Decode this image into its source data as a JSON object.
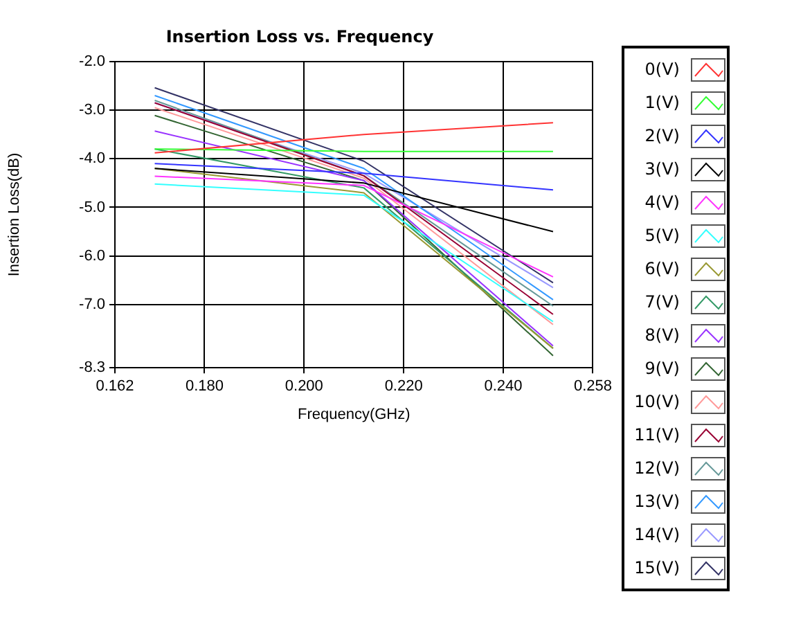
{
  "chart_data": {
    "type": "line",
    "title": "Insertion Loss vs. Frequency",
    "xlabel": "Frequency(GHz)",
    "ylabel": "Insertion Loss(dB)",
    "x": [
      0.17,
      0.212,
      0.25
    ],
    "series": [
      {
        "name": "0(V)",
        "color": "#ff3333",
        "values": [
          -3.88,
          -3.5,
          -3.26
        ]
      },
      {
        "name": "1(V)",
        "color": "#33ff33",
        "values": [
          -3.8,
          -3.85,
          -3.85
        ]
      },
      {
        "name": "2(V)",
        "color": "#3333ff",
        "values": [
          -4.1,
          -4.3,
          -4.64
        ]
      },
      {
        "name": "3(V)",
        "color": "#000000",
        "values": [
          -4.2,
          -4.5,
          -5.5
        ]
      },
      {
        "name": "4(V)",
        "color": "#ff33ff",
        "values": [
          -4.36,
          -4.55,
          -6.43
        ]
      },
      {
        "name": "5(V)",
        "color": "#33ffff",
        "values": [
          -4.52,
          -4.75,
          -7.35
        ]
      },
      {
        "name": "6(V)",
        "color": "#999933",
        "values": [
          -4.2,
          -4.7,
          -7.9
        ]
      },
      {
        "name": "7(V)",
        "color": "#339966",
        "values": [
          -3.8,
          -4.6,
          -7.9
        ]
      },
      {
        "name": "8(V)",
        "color": "#9933ff",
        "values": [
          -3.43,
          -4.45,
          -7.85
        ]
      },
      {
        "name": "9(V)",
        "color": "#336633",
        "values": [
          -3.11,
          -4.45,
          -8.05
        ]
      },
      {
        "name": "10(V)",
        "color": "#ff9999",
        "values": [
          -2.95,
          -4.4,
          -7.41
        ]
      },
      {
        "name": "11(V)",
        "color": "#990033",
        "values": [
          -2.85,
          -4.35,
          -7.2
        ]
      },
      {
        "name": "12(V)",
        "color": "#669999",
        "values": [
          -2.8,
          -4.35,
          -7.03
        ]
      },
      {
        "name": "13(V)",
        "color": "#3399ff",
        "values": [
          -2.7,
          -4.2,
          -6.9
        ]
      },
      {
        "name": "14(V)",
        "color": "#9999ff",
        "values": [
          -2.85,
          -4.3,
          -6.65
        ]
      },
      {
        "name": "15(V)",
        "color": "#333366",
        "values": [
          -2.54,
          -4.05,
          -6.55
        ]
      }
    ],
    "xlim": [
      0.162,
      0.258
    ],
    "xticks": [
      0.162,
      {
        "value": 0.18,
        "label": "0.180"
      },
      {
        "value": 0.2,
        "label": "0.200"
      },
      {
        "value": 0.22,
        "label": "0.220"
      },
      {
        "value": 0.24,
        "label": "0.240"
      },
      0.258
    ],
    "ylim": [
      -8.3,
      -2.0
    ],
    "yticks": [
      {
        "value": -2,
        "label": "-2.0"
      },
      {
        "value": -3,
        "label": "-3.0"
      },
      {
        "value": -4,
        "label": "-4.0"
      },
      {
        "value": -5,
        "label": "-5.0"
      },
      {
        "value": -6,
        "label": "-6.0"
      },
      {
        "value": -7,
        "label": "-7.0"
      },
      -8.3
    ],
    "grid": true,
    "legend": "right",
    "marker": "none",
    "line_style": "solid"
  }
}
